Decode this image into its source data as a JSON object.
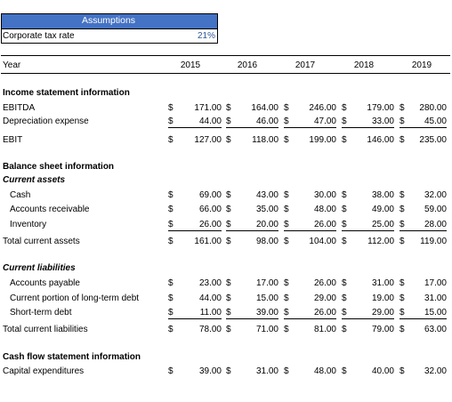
{
  "assumptions": {
    "title": "Assumptions",
    "tax_label": "Corporate tax rate",
    "tax_value": "21%"
  },
  "years": {
    "label": "Year",
    "values": [
      "2015",
      "2016",
      "2017",
      "2018",
      "2019"
    ]
  },
  "income": {
    "heading": "Income statement information",
    "rows": [
      {
        "label": "EBITDA",
        "values": [
          "171.00",
          "164.00",
          "246.00",
          "179.00",
          "280.00"
        ]
      },
      {
        "label": "Depreciation expense",
        "values": [
          "44.00",
          "46.00",
          "47.00",
          "33.00",
          "45.00"
        ]
      },
      {
        "label": "EBIT",
        "values": [
          "127.00",
          "118.00",
          "199.00",
          "146.00",
          "235.00"
        ]
      }
    ]
  },
  "balance": {
    "heading": "Balance sheet information",
    "current_assets_heading": "Current assets",
    "assets": [
      {
        "label": "Cash",
        "values": [
          "69.00",
          "43.00",
          "30.00",
          "38.00",
          "32.00"
        ]
      },
      {
        "label": "Accounts receivable",
        "values": [
          "66.00",
          "35.00",
          "48.00",
          "49.00",
          "59.00"
        ]
      },
      {
        "label": "Inventory",
        "values": [
          "26.00",
          "20.00",
          "26.00",
          "25.00",
          "28.00"
        ]
      }
    ],
    "total_assets": {
      "label": "Total current assets",
      "values": [
        "161.00",
        "98.00",
        "104.00",
        "112.00",
        "119.00"
      ]
    },
    "current_liabilities_heading": "Current liabilities",
    "liabilities": [
      {
        "label": "Accounts payable",
        "values": [
          "23.00",
          "17.00",
          "26.00",
          "31.00",
          "17.00"
        ]
      },
      {
        "label": "Current portion of long-term debt",
        "values": [
          "44.00",
          "15.00",
          "29.00",
          "19.00",
          "31.00"
        ]
      },
      {
        "label": "Short-term debt",
        "values": [
          "11.00",
          "39.00",
          "26.00",
          "29.00",
          "15.00"
        ]
      }
    ],
    "total_liabilities": {
      "label": "Total current liabilities",
      "values": [
        "78.00",
        "71.00",
        "81.00",
        "79.00",
        "63.00"
      ]
    }
  },
  "cashflow": {
    "heading": "Cash flow statement information",
    "rows": [
      {
        "label": "Capital expenditures",
        "values": [
          "39.00",
          "31.00",
          "48.00",
          "40.00",
          "32.00"
        ]
      }
    ]
  },
  "currency_symbol": "$"
}
